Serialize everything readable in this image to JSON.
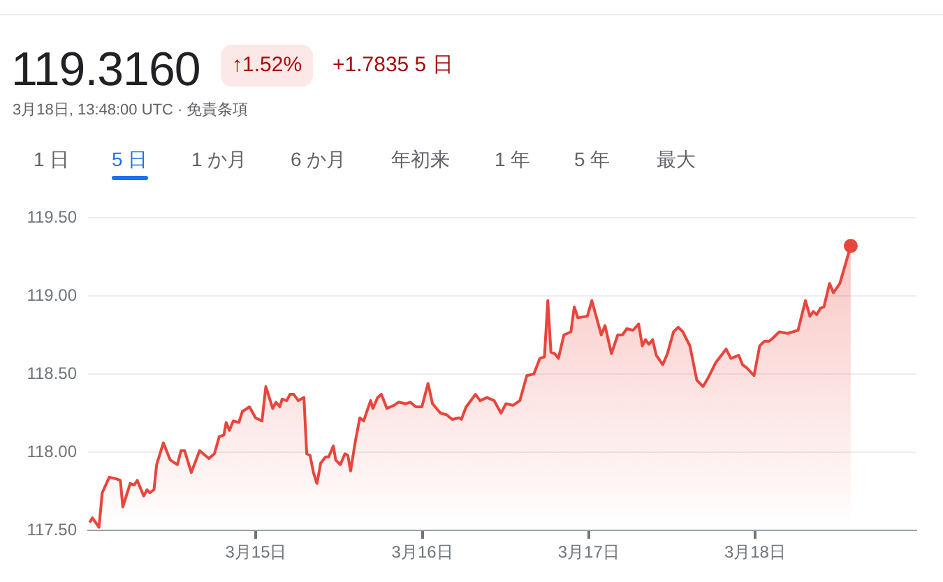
{
  "chart_data": {
    "type": "area",
    "title": "119.3160",
    "subtitle": "3月18日, 13:48:00 UTC · 免責条項",
    "annotations": [
      "↑1.52%",
      "+1.7835 5 日",
      "1 日",
      "5 日",
      "1 か月",
      "6 か月",
      "年初来",
      "1 年",
      "5 年",
      "最大"
    ],
    "xlim": [
      "--03-13T23:46",
      "--03-18T23:17"
    ],
    "xticks": [
      {
        "value": "--03-15",
        "label": "3月15日"
      },
      {
        "value": "--03-16",
        "label": "3月16日"
      },
      {
        "value": "--03-17",
        "label": "3月17日"
      },
      {
        "value": "--03-18",
        "label": "3月18日"
      }
    ],
    "ylim": [
      117.5,
      119.5
    ],
    "yticks": [
      {
        "value": 117.5,
        "label": "117.50"
      },
      {
        "value": 118,
        "label": "118.00"
      },
      {
        "value": 118.5,
        "label": "118.50"
      },
      {
        "value": 119,
        "label": "119.00"
      },
      {
        "value": 119.5,
        "label": "119.50"
      }
    ],
    "grid": "y",
    "legend": false,
    "series": [
      {
        "color": "#e8453c",
        "x": [
          "--03-14T00:00",
          "--03-14T00:24",
          "--03-14T01:21",
          "--03-14T01:49",
          "--03-14T02:50",
          "--03-14T03:50",
          "--03-14T04:26",
          "--03-14T04:47",
          "--03-14T05:51",
          "--03-14T06:27",
          "--03-14T06:52",
          "--03-14T07:48",
          "--03-14T08:17",
          "--03-14T08:40",
          "--03-14T09:17",
          "--03-14T09:40",
          "--03-14T10:38",
          "--03-14T11:38",
          "--03-14T12:39",
          "--03-14T13:11",
          "--03-14T13:42",
          "--03-14T14:40",
          "--03-14T15:52",
          "--03-14T17:12",
          "--03-14T18:00",
          "--03-14T18:42",
          "--03-14T19:22",
          "--03-14T19:42",
          "--03-14T20:10",
          "--03-14T20:43",
          "--03-14T21:32",
          "--03-14T22:02",
          "--03-14T23:04",
          "--03-14T23:56",
          "--03-15T00:52",
          "--03-15T01:25",
          "--03-15T02:25",
          "--03-15T02:53",
          "--03-15T03:26",
          "--03-15T03:46",
          "--03-15T04:26",
          "--03-15T04:54",
          "--03-15T05:27",
          "--03-15T06:07",
          "--03-15T06:55",
          "--03-15T07:19",
          "--03-15T07:48",
          "--03-15T08:17",
          "--03-15T08:48",
          "--03-15T09:20",
          "--03-15T10:02",
          "--03-15T10:29",
          "--03-15T11:10",
          "--03-15T11:30",
          "--03-15T12:10",
          "--03-15T12:50",
          "--03-15T13:15",
          "--03-15T13:39",
          "--03-15T14:20",
          "--03-15T14:59",
          "--03-15T15:32",
          "--03-15T16:32",
          "--03-15T16:52",
          "--03-15T17:33",
          "--03-15T18:06",
          "--03-15T18:53",
          "--03-15T19:54",
          "--03-15T20:34",
          "--03-15T21:35",
          "--03-15T22:15",
          "--03-15T23:04",
          "--03-15T23:56",
          "--03-16T00:49",
          "--03-16T01:28",
          "--03-16T02:37",
          "--03-16T03:29",
          "--03-16T04:18",
          "--03-16T05:18",
          "--03-16T05:38",
          "--03-16T06:19",
          "--03-16T07:00",
          "--03-16T07:39",
          "--03-16T08:20",
          "--03-16T09:20",
          "--03-16T10:21",
          "--03-16T11:21",
          "--03-16T12:03",
          "--03-16T13:03",
          "--03-16T14:04",
          "--03-16T15:04",
          "--03-16T16:05",
          "--03-16T16:57",
          "--03-16T17:37",
          "--03-16T18:06",
          "--03-16T18:33",
          "--03-16T19:06",
          "--03-16T19:38",
          "--03-16T20:25",
          "--03-16T21:26",
          "--03-16T21:55",
          "--03-16T22:26",
          "--03-16T23:48",
          "--03-17T00:27",
          "--03-17T01:49",
          "--03-17T02:21",
          "--03-17T03:17",
          "--03-17T04:11",
          "--03-17T04:51",
          "--03-17T05:30",
          "--03-17T06:23",
          "--03-17T07:12",
          "--03-17T07:44",
          "--03-17T08:12",
          "--03-17T08:40",
          "--03-17T09:13",
          "--03-17T09:45",
          "--03-17T10:41",
          "--03-17T11:21",
          "--03-17T12:14",
          "--03-17T12:55",
          "--03-17T13:35",
          "--03-17T14:36",
          "--03-17T15:36",
          "--03-17T16:29",
          "--03-17T17:17",
          "--03-17T18:17",
          "--03-17T19:49",
          "--03-17T20:31",
          "--03-17T21:39",
          "--03-17T22:11",
          "--03-17T22:48",
          "--03-17T23:51",
          "--03-18T00:40",
          "--03-18T01:21",
          "--03-18T02:01",
          "--03-18T02:34",
          "--03-18T03:29",
          "--03-18T04:42",
          "--03-18T06:12",
          "--03-18T07:16",
          "--03-18T07:55",
          "--03-18T08:24",
          "--03-18T08:53",
          "--03-18T09:25",
          "--03-18T09:56",
          "--03-18T10:45",
          "--03-18T11:18",
          "--03-18T12:14",
          "--03-18T13:48"
        ],
        "values": [
          117.55,
          117.58,
          117.52,
          117.74,
          117.84,
          117.83,
          117.82,
          117.65,
          117.8,
          117.79,
          117.82,
          117.72,
          117.76,
          117.74,
          117.76,
          117.92,
          118.06,
          117.95,
          117.92,
          118.01,
          118.01,
          117.87,
          118.01,
          117.96,
          117.99,
          118.1,
          118.11,
          118.19,
          118.14,
          118.2,
          118.19,
          118.26,
          118.29,
          118.22,
          118.2,
          118.42,
          118.28,
          118.32,
          118.29,
          118.34,
          118.33,
          118.37,
          118.37,
          118.33,
          118.35,
          117.99,
          117.98,
          117.87,
          117.8,
          117.93,
          117.97,
          117.97,
          118.04,
          117.95,
          117.92,
          117.99,
          117.98,
          117.88,
          118.07,
          118.22,
          118.2,
          118.33,
          118.28,
          118.35,
          118.37,
          118.28,
          118.3,
          118.32,
          118.31,
          118.32,
          118.29,
          118.29,
          118.44,
          118.31,
          118.25,
          118.24,
          118.21,
          118.22,
          118.21,
          118.29,
          118.33,
          118.37,
          118.33,
          118.35,
          118.33,
          118.25,
          118.31,
          118.3,
          118.33,
          118.49,
          118.5,
          118.6,
          118.61,
          118.97,
          118.64,
          118.63,
          118.6,
          118.75,
          118.77,
          118.93,
          118.86,
          118.87,
          118.97,
          118.75,
          118.81,
          118.63,
          118.75,
          118.75,
          118.79,
          118.78,
          118.82,
          118.68,
          118.72,
          118.69,
          118.72,
          118.62,
          118.56,
          118.63,
          118.77,
          118.8,
          118.77,
          118.68,
          118.46,
          118.42,
          118.48,
          118.57,
          118.66,
          118.6,
          118.62,
          118.56,
          118.54,
          118.49,
          118.68,
          118.71,
          118.71,
          118.73,
          118.77,
          118.76,
          118.78,
          118.97,
          118.87,
          118.9,
          118.88,
          118.92,
          118.93,
          119.08,
          119.02,
          119.08,
          119.32
        ]
      }
    ]
  }
}
